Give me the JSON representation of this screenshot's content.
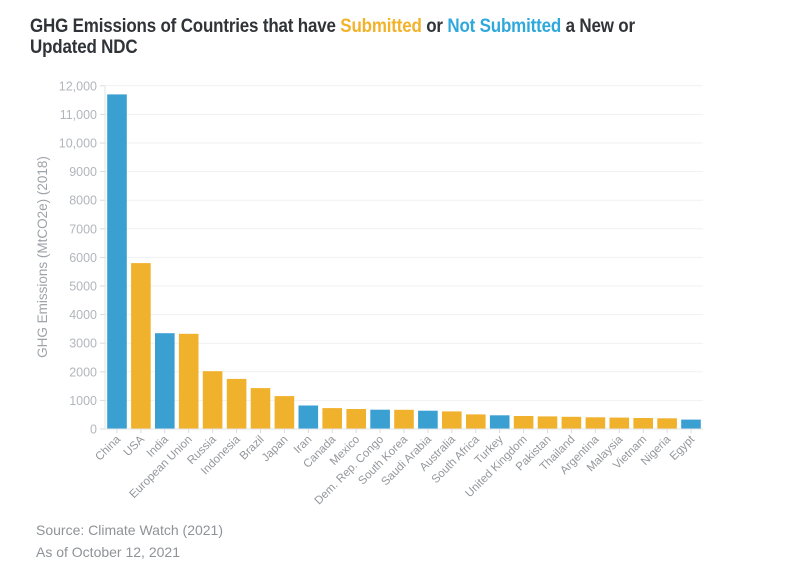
{
  "title": {
    "part1": "GHG Emissions of Countries that have ",
    "submitted": "Submitted",
    "part2": " or ",
    "not_submitted": "Not Submitted",
    "part3": " a New or",
    "part4": "Updated NDC"
  },
  "footer": {
    "source": "Source: Climate Watch (2021)",
    "as_of": "As of October 12, 2021"
  },
  "colors": {
    "submitted_bar": "#F0B12C",
    "not_submitted_bar": "#3A9FD1",
    "title_text": "#303438",
    "title_submitted": "#F2B32B",
    "title_not_submitted": "#2FA8DC",
    "y_tick_text": "#b2b6bc",
    "x_label_text": "#93979c",
    "gridline": "#f0f1f2",
    "axis_line": "#e2e4e6"
  },
  "chart_data": {
    "type": "bar",
    "title": "GHG Emissions of Countries that have Submitted or Not Submitted a New or Updated NDC",
    "ylabel": "GHG Emissions (MtCO2e) (2018)",
    "xlabel": "",
    "ylim": [
      0,
      12000
    ],
    "ytick_interval": 1000,
    "ytick_labels": [
      "0",
      "1000",
      "2000",
      "3000",
      "4000",
      "5000",
      "6000",
      "7000",
      "8000",
      "9000",
      "10,000",
      "11,000",
      "12,000"
    ],
    "grid": true,
    "legend_position": "none",
    "color_encoding": {
      "submitted": "yellow bars",
      "not_submitted": "blue bars"
    },
    "categories": [
      "China",
      "USA",
      "India",
      "European Union",
      "Russia",
      "Indonesia",
      "Brazil",
      "Japan",
      "Iran",
      "Canada",
      "Mexico",
      "Dem. Rep. Congo",
      "South Korea",
      "Saudi Arabia",
      "Australia",
      "South Africa",
      "Turkey",
      "United Kingdom",
      "Pakistan",
      "Thailand",
      "Argentina",
      "Malaysia",
      "Vietnam",
      "Nigeria",
      "Egypt"
    ],
    "values": [
      11700,
      5800,
      3350,
      3330,
      2020,
      1750,
      1430,
      1150,
      820,
      730,
      700,
      675,
      670,
      640,
      615,
      510,
      480,
      455,
      440,
      425,
      410,
      400,
      385,
      375,
      330
    ],
    "status": [
      "not_submitted",
      "submitted",
      "not_submitted",
      "submitted",
      "submitted",
      "submitted",
      "submitted",
      "submitted",
      "not_submitted",
      "submitted",
      "submitted",
      "not_submitted",
      "submitted",
      "not_submitted",
      "submitted",
      "submitted",
      "not_submitted",
      "submitted",
      "submitted",
      "submitted",
      "submitted",
      "submitted",
      "submitted",
      "submitted",
      "not_submitted"
    ]
  }
}
